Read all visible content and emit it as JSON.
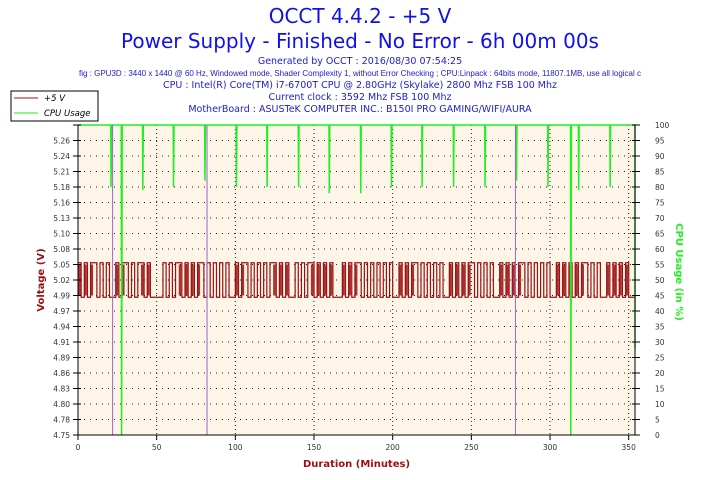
{
  "header": {
    "title": "OCCT 4.4.2 - +5 V",
    "subtitle": "Power Supply - Finished - No Error - 6h 00m 00s",
    "info": [
      "Generated by OCCT : 2016/08/30 07:54:25",
      "fig : GPU3D : 3440 x 1440 @ 60 Hz, Windowed mode, Shader Complexity 1, without Error Checking ; CPU:Linpack : 64bits mode, 11807.1MB, use all logical c",
      "CPU : Intel(R) Core(TM) i7-6700T CPU @ 2.80GHz (Skylake) 2800 Mhz FSB 100 Mhz",
      "Current clock : 3592 Mhz FSB 100 Mhz",
      "MotherBoard : ASUSTeK COMPUTER INC.: B150I PRO GAMING/WIFI/AURA"
    ]
  },
  "colors": {
    "voltage": "#9b1010",
    "cpu": "#22ee22",
    "overlap": "#9966cc",
    "plot_bg": "#fdf6e8",
    "title": "#1010ee"
  },
  "chart_data": {
    "type": "line",
    "title": "OCCT 4.4.2 - +5 V",
    "xlabel": "Duration (Minutes)",
    "ylabel": "Voltage (V)",
    "y2label": "CPU Usage (in %)",
    "xlim": [
      0,
      354
    ],
    "ylim": [
      4.75,
      5.29
    ],
    "y2lim": [
      0,
      100
    ],
    "x_ticks": [
      0,
      50,
      100,
      150,
      200,
      250,
      300,
      350
    ],
    "y_ticks": [
      "4.75",
      "4.78",
      "4.80",
      "4.83",
      "4.86",
      "4.89",
      "4.91",
      "4.94",
      "4.97",
      "4.99",
      "5.02",
      "5.05",
      "5.08",
      "5.10",
      "5.13",
      "5.16",
      "5.18",
      "5.21",
      "5.24",
      "5.26",
      "5.28"
    ],
    "y2_ticks": [
      0,
      5,
      10,
      15,
      20,
      25,
      30,
      35,
      40,
      45,
      50,
      55,
      60,
      65,
      70,
      75,
      80,
      85,
      90,
      95,
      100
    ],
    "legend": {
      "position": "top-left",
      "entries": [
        "+5 V",
        "CPU Usage"
      ]
    },
    "grid": true,
    "series": [
      {
        "name": "+5 V",
        "x_step": 2,
        "values": [
          5.05,
          4.99,
          5.05,
          4.99,
          5.05,
          5.05,
          4.99,
          5.05,
          4.99,
          5.05,
          4.99,
          4.99,
          5.05,
          4.99,
          5.05,
          5.05,
          4.99,
          5.05,
          4.99,
          5.05,
          5.05,
          4.99,
          5.05,
          4.99,
          4.99,
          4.99,
          4.99,
          5.05,
          4.99,
          5.05,
          4.99,
          5.05,
          5.05,
          4.99,
          5.05,
          4.99,
          5.05,
          4.99,
          5.05,
          5.05,
          4.99,
          5.05,
          4.99,
          5.05,
          4.99,
          5.05,
          4.99,
          5.05,
          4.99,
          4.99,
          5.05,
          4.99,
          5.05,
          5.05,
          4.99,
          5.05,
          4.99,
          5.05,
          4.99,
          5.05,
          4.99,
          5.05,
          5.05,
          4.99,
          5.05,
          4.99,
          5.05,
          4.99,
          4.99,
          5.05,
          4.99,
          5.05,
          4.99,
          5.05,
          5.05,
          4.99,
          5.05,
          4.99,
          5.05,
          4.99,
          5.05,
          4.99,
          4.99,
          4.99,
          5.05,
          4.99,
          5.05,
          4.99,
          5.05,
          5.05,
          4.99,
          5.05,
          4.99,
          5.05,
          4.99,
          5.05,
          4.99,
          5.05,
          4.99,
          5.05,
          4.99,
          4.99,
          5.05,
          4.99,
          5.05,
          4.99,
          5.05,
          5.05,
          4.99,
          5.05,
          4.99,
          5.05,
          4.99,
          5.05,
          4.99,
          5.05,
          4.99,
          4.99,
          5.05,
          4.99,
          5.05,
          4.99,
          5.05,
          4.99,
          5.05,
          5.05,
          4.99,
          5.05,
          4.99,
          5.05,
          4.99,
          5.05,
          4.99,
          4.99,
          5.05,
          4.99,
          5.05,
          4.99,
          5.05,
          4.99,
          5.05,
          5.05,
          4.99,
          5.05,
          4.99,
          5.05,
          4.99,
          5.05,
          4.99,
          5.05,
          4.99,
          4.99,
          5.05,
          4.99,
          5.05,
          4.99,
          5.05,
          4.99,
          5.05,
          4.99,
          5.05,
          5.05,
          4.99,
          5.05,
          4.99,
          5.05,
          4.99,
          4.99,
          5.05,
          4.99,
          5.05,
          4.99,
          5.05,
          4.99,
          5.05,
          4.99,
          4.99,
          4.99
        ]
      },
      {
        "name": "CPU Usage",
        "points": [
          [
            0,
            100
          ],
          [
            20.8,
            100
          ],
          [
            21,
            80
          ],
          [
            21.4,
            100
          ],
          [
            27.5,
            100
          ],
          [
            27.7,
            0
          ],
          [
            28.1,
            100
          ],
          [
            41,
            100
          ],
          [
            41.2,
            79
          ],
          [
            41.5,
            100
          ],
          [
            60.5,
            100
          ],
          [
            60.7,
            80
          ],
          [
            61,
            100
          ],
          [
            80.5,
            100
          ],
          [
            80.7,
            82
          ],
          [
            81,
            100
          ],
          [
            100.5,
            100
          ],
          [
            100.7,
            80
          ],
          [
            101,
            100
          ],
          [
            120,
            100
          ],
          [
            120.2,
            80
          ],
          [
            120.5,
            100
          ],
          [
            140,
            100
          ],
          [
            140.2,
            80
          ],
          [
            140.5,
            100
          ],
          [
            159.5,
            100
          ],
          [
            159.7,
            78
          ],
          [
            160,
            100
          ],
          [
            179.5,
            100
          ],
          [
            179.7,
            78
          ],
          [
            180,
            100
          ],
          [
            199,
            100
          ],
          [
            199.2,
            80
          ],
          [
            199.5,
            100
          ],
          [
            218.5,
            100
          ],
          [
            218.7,
            80
          ],
          [
            219,
            100
          ],
          [
            238.5,
            100
          ],
          [
            238.7,
            80
          ],
          [
            239,
            100
          ],
          [
            258.5,
            100
          ],
          [
            258.7,
            80
          ],
          [
            259,
            100
          ],
          [
            278.5,
            100
          ],
          [
            278.7,
            82
          ],
          [
            279,
            100
          ],
          [
            298.5,
            100
          ],
          [
            298.7,
            80
          ],
          [
            299,
            100
          ],
          [
            313,
            100
          ],
          [
            313.2,
            0
          ],
          [
            313.6,
            100
          ],
          [
            318,
            100
          ],
          [
            318.2,
            79
          ],
          [
            318.5,
            100
          ],
          [
            338,
            100
          ],
          [
            338.2,
            80
          ],
          [
            338.5,
            100
          ],
          [
            356.5,
            100
          ],
          [
            357,
            65
          ],
          [
            357.5,
            30
          ],
          [
            358,
            35
          ],
          [
            358.5,
            28
          ],
          [
            359,
            33
          ],
          [
            359.5,
            28
          ]
        ]
      }
    ],
    "overlap_markers": [
      22,
      82,
      278
    ]
  }
}
